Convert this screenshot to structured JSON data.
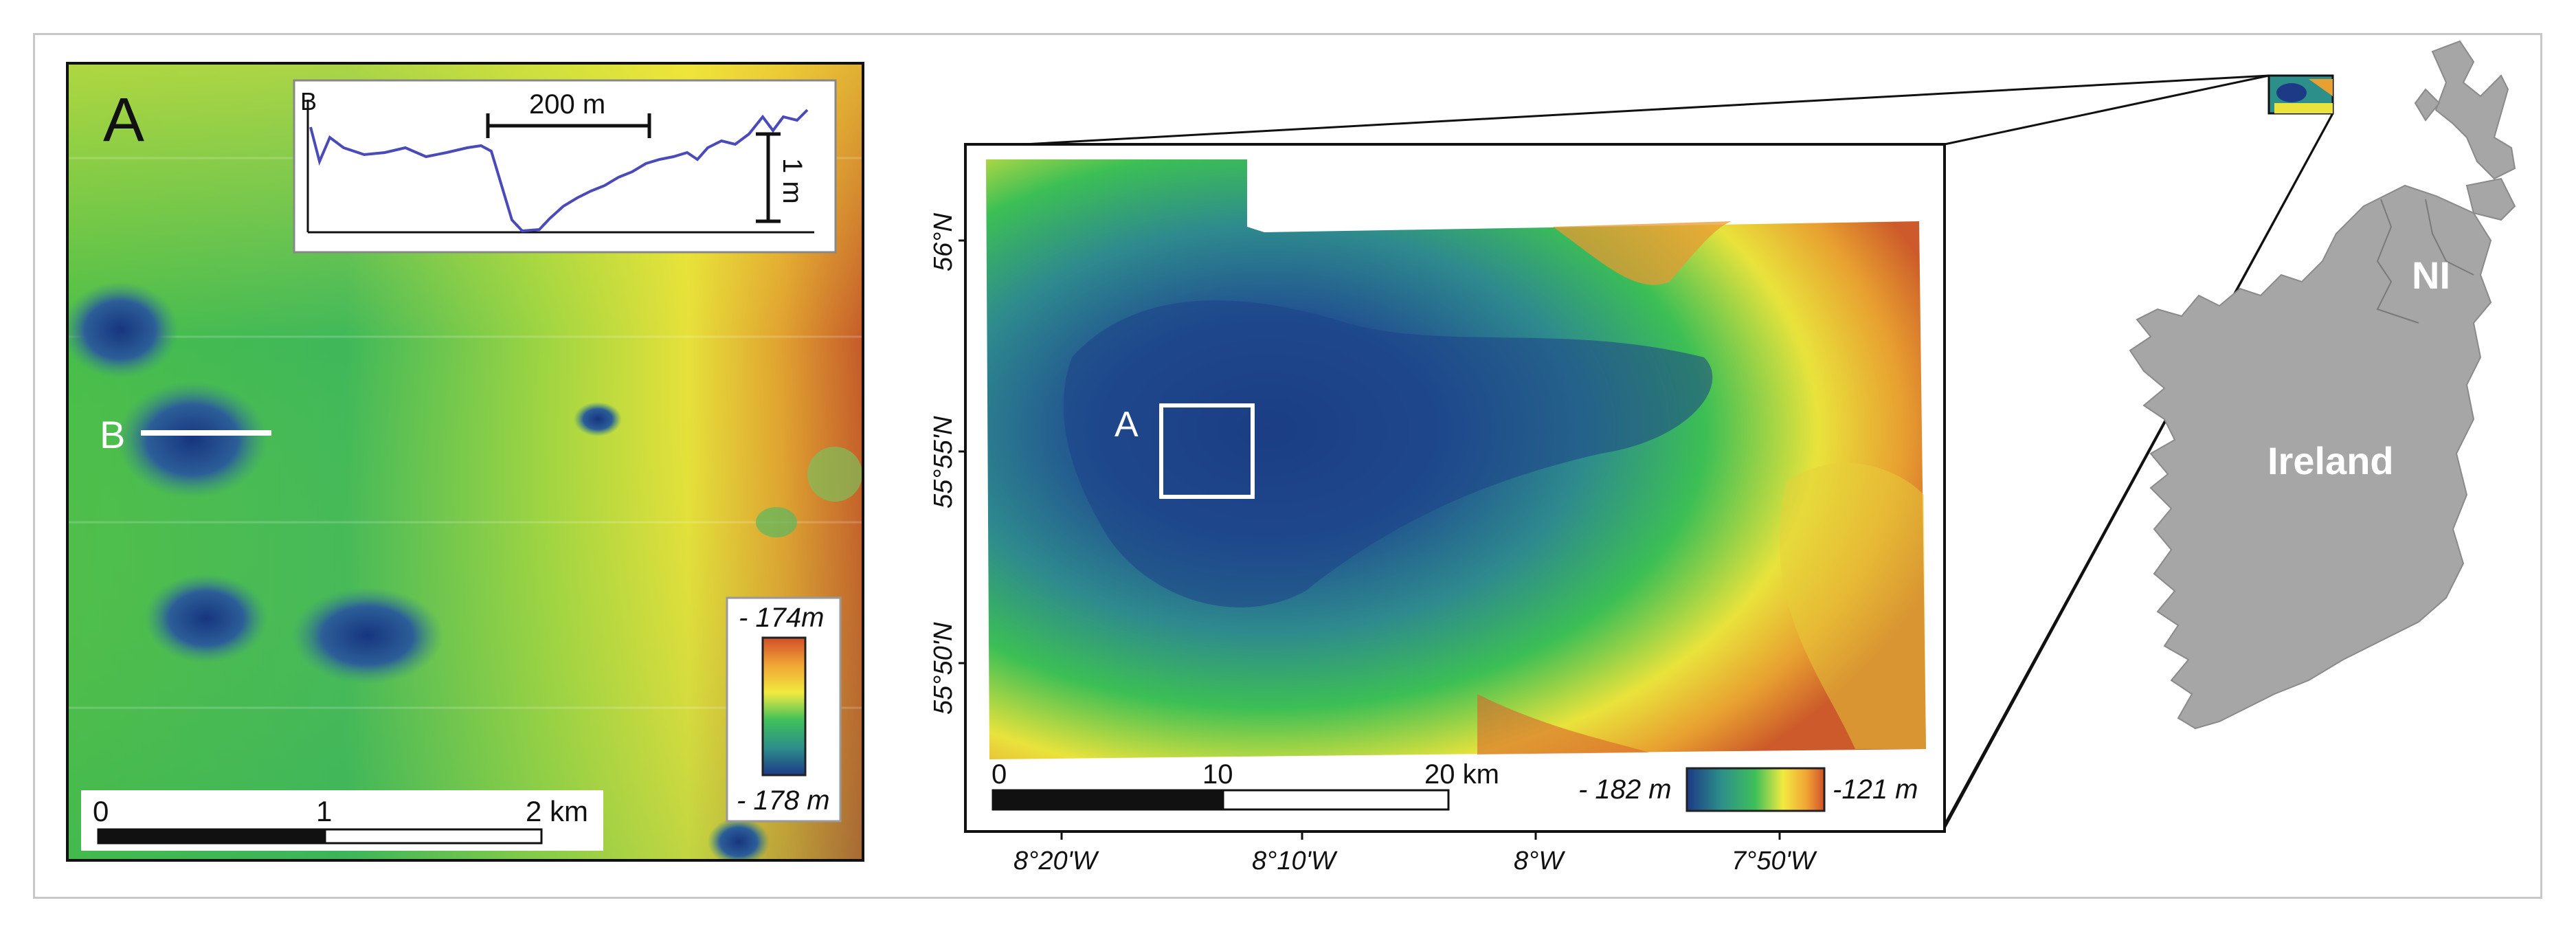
{
  "panel_a": {
    "letter": "A",
    "profile_label": "B",
    "inset": {
      "letter": "B",
      "horizontal_scale": "200 m",
      "vertical_scale": "1 m"
    },
    "legend": {
      "top": "- 174m",
      "bottom": "- 178 m"
    },
    "scalebar": {
      "ticks": [
        "0",
        "1",
        "2 km"
      ]
    }
  },
  "panel_main": {
    "box_label": "A",
    "scalebar": {
      "ticks": [
        "0",
        "10",
        "20 km"
      ]
    },
    "legend": {
      "left": "- 182 m",
      "right": "-121 m"
    },
    "lat_labels": [
      "56°N",
      "55°55'N",
      "55°50'N"
    ],
    "lon_labels": [
      "8°20'W",
      "8°10'W",
      "8°W",
      "7°50'W"
    ]
  },
  "panel_map": {
    "labels": {
      "ni": "NI",
      "ireland": "Ireland"
    }
  },
  "colors": {
    "deep": "#1b3f8a",
    "mid_green": "#2fbf4a",
    "yellow": "#f3e93a",
    "shallow": "#c2452a",
    "land": "#a6a6a6"
  }
}
